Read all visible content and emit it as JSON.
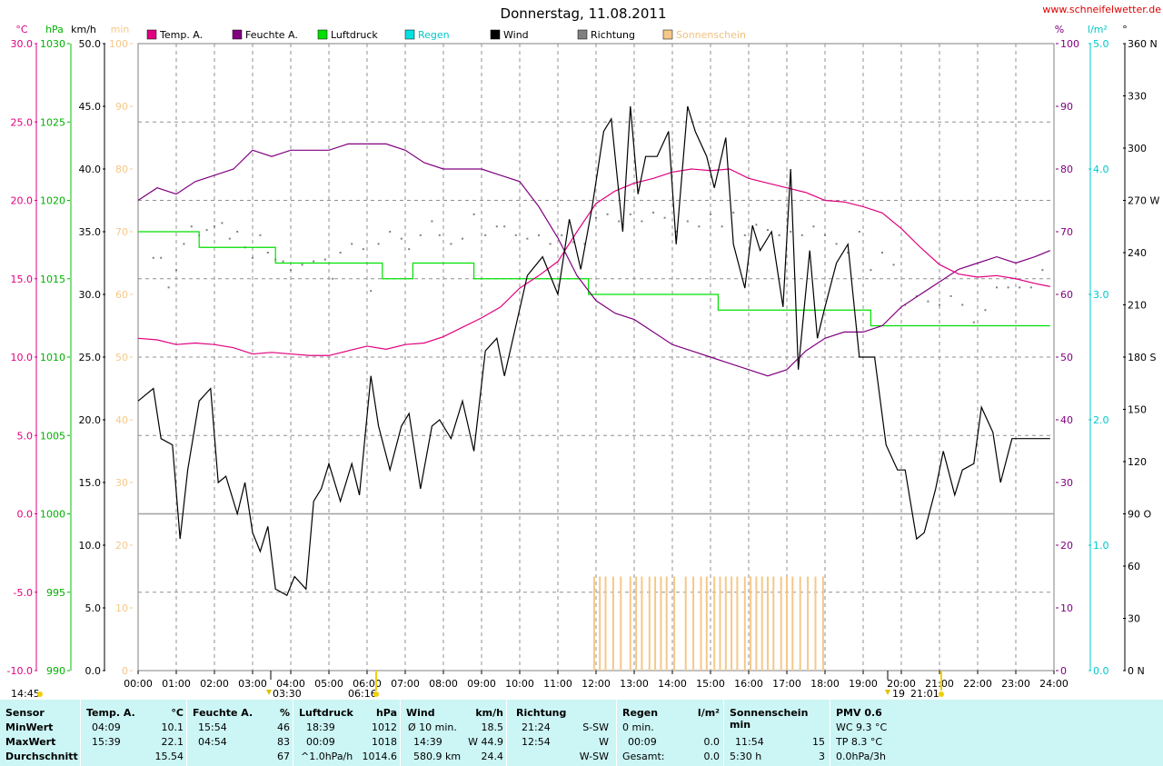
{
  "header": {
    "title": "Donnerstag, 11.08.2011",
    "site": "www.schneifelwetter.de",
    "left_units": [
      "°C",
      "hPa",
      "km/h",
      "min"
    ],
    "right_units": [
      "%",
      "l/m²",
      "°"
    ]
  },
  "legend": [
    {
      "label": "Temp. A.",
      "color": "#e0007f"
    },
    {
      "label": "Feuchte A.",
      "color": "#800080"
    },
    {
      "label": "Luftdruck",
      "color": "#00e000"
    },
    {
      "label": "Regen",
      "color": "#00e0e0"
    },
    {
      "label": "Wind",
      "color": "#000000"
    },
    {
      "label": "Richtung",
      "color": "#808080"
    },
    {
      "label": "Sonnenschein",
      "color": "#f5c889"
    }
  ],
  "chart_data": {
    "type": "line",
    "title": "Donnerstag, 11.08.2011",
    "x_ticks": [
      "00:00",
      "01:00",
      "02:00",
      "03:00",
      "04:00",
      "05:00",
      "06:00",
      "07:00",
      "08:00",
      "09:00",
      "10:00",
      "11:00",
      "12:00",
      "13:00",
      "14:00",
      "15:00",
      "16:00",
      "17:00",
      "18:00",
      "19:00",
      "20:00",
      "21:00",
      "22:00",
      "23:00",
      "24:00"
    ],
    "axes": {
      "temp_c": {
        "range": [
          -10,
          30
        ],
        "ticks": [
          "30.0",
          "25.0",
          "20.0",
          "15.0",
          "10.0",
          "5.0",
          "0.0",
          "-5.0",
          "-10.0"
        ],
        "color": "#e0007f"
      },
      "pressure_hpa": {
        "range": [
          990,
          1030
        ],
        "ticks": [
          "1030",
          "1025",
          "1020",
          "1015",
          "1010",
          "1005",
          "1000",
          "995",
          "990"
        ],
        "color": "#00c000"
      },
      "wind_kmh": {
        "range": [
          0,
          50
        ],
        "ticks": [
          "50.0",
          "45.0",
          "40.0",
          "35.0",
          "30.0",
          "25.0",
          "20.0",
          "15.0",
          "10.0",
          "5.0",
          "0.0"
        ],
        "color": "#000000"
      },
      "sun_min": {
        "range": [
          0,
          100
        ],
        "ticks": [
          "100",
          "90",
          "80",
          "70",
          "60",
          "50",
          "40",
          "30",
          "20",
          "10",
          "0"
        ],
        "color": "#f5c889"
      },
      "humidity_pct": {
        "range": [
          0,
          100
        ],
        "ticks": [
          "100",
          "90",
          "80",
          "70",
          "60",
          "50",
          "40",
          "30",
          "20",
          "10",
          "0"
        ],
        "color": "#800080"
      },
      "rain_lm2": {
        "range": [
          0,
          5
        ],
        "ticks": [
          "5.0",
          "4.0",
          "3.0",
          "2.0",
          "1.0",
          "0.0"
        ],
        "color": "#00e0e0"
      },
      "direction_deg": {
        "range": [
          0,
          360
        ],
        "ticks": [
          "360 N",
          "330",
          "300",
          "270 W",
          "240",
          "210",
          "180 S",
          "150",
          "120",
          "90 O",
          "60",
          "30",
          "0 N"
        ]
      }
    },
    "series": [
      {
        "name": "Temp. A.",
        "axis": "temp_c",
        "x": [
          0,
          0.5,
          1,
          1.5,
          2,
          2.5,
          3,
          3.5,
          4,
          4.5,
          5,
          5.5,
          6,
          6.5,
          7,
          7.5,
          8,
          8.5,
          9,
          9.5,
          10,
          10.5,
          11,
          11.5,
          12,
          12.5,
          13,
          13.5,
          14,
          14.5,
          15,
          15.5,
          16,
          16.5,
          17,
          17.5,
          18,
          18.5,
          19,
          19.5,
          20,
          20.5,
          21,
          21.5,
          22,
          22.5,
          23,
          23.5,
          23.9
        ],
        "y": [
          11.2,
          11.1,
          10.8,
          10.9,
          10.8,
          10.6,
          10.2,
          10.3,
          10.2,
          10.1,
          10.1,
          10.4,
          10.7,
          10.5,
          10.8,
          10.9,
          11.3,
          11.9,
          12.5,
          13.2,
          14.4,
          15.2,
          16.1,
          18.0,
          19.8,
          20.6,
          21.1,
          21.4,
          21.8,
          22.0,
          21.9,
          22.0,
          21.4,
          21.1,
          20.8,
          20.5,
          20.0,
          19.9,
          19.6,
          19.2,
          18.2,
          17.0,
          15.9,
          15.3,
          15.1,
          15.2,
          15.0,
          14.7,
          14.5
        ]
      },
      {
        "name": "Feuchte A.",
        "axis": "humidity_pct",
        "x": [
          0,
          0.5,
          1,
          1.5,
          2,
          2.5,
          3,
          3.5,
          4,
          4.5,
          5,
          5.5,
          6,
          6.5,
          7,
          7.5,
          8,
          8.5,
          9,
          9.5,
          10,
          10.5,
          11,
          11.5,
          12,
          12.5,
          13,
          13.5,
          14,
          14.5,
          15,
          15.5,
          16,
          16.5,
          17,
          17.5,
          18,
          18.5,
          19,
          19.5,
          20,
          20.5,
          21,
          21.5,
          22,
          22.5,
          23,
          23.5,
          23.9
        ],
        "y": [
          75,
          77,
          76,
          78,
          79,
          80,
          83,
          82,
          83,
          83,
          83,
          84,
          84,
          84,
          83,
          81,
          80,
          80,
          80,
          79,
          78,
          74,
          69,
          63,
          59,
          57,
          56,
          54,
          52,
          51,
          50,
          49,
          48,
          47,
          48,
          51,
          53,
          54,
          54,
          55,
          58,
          60,
          62,
          64,
          65,
          66,
          65,
          66,
          67
        ]
      },
      {
        "name": "Luftdruck",
        "axis": "pressure_hpa",
        "x": [
          0,
          0.5,
          1,
          1.4,
          1.6,
          2,
          2.5,
          3,
          3.4,
          3.6,
          4,
          4.5,
          5,
          5.5,
          6,
          6.4,
          6.6,
          7,
          7.2,
          7.5,
          8,
          8.5,
          8.8,
          9,
          9.5,
          10,
          10.5,
          11,
          11.5,
          11.8,
          12,
          12.5,
          13,
          13.5,
          14,
          14.5,
          15,
          15.2,
          15.5,
          16,
          16.5,
          17,
          17.5,
          18,
          18.5,
          19,
          19.2,
          19.5,
          20,
          20.5,
          21,
          21.5,
          22,
          22.5,
          23,
          23.5,
          23.9
        ],
        "y": [
          1018,
          1018,
          1018,
          1018,
          1017,
          1017,
          1017,
          1017,
          1017,
          1016,
          1016,
          1016,
          1016,
          1016,
          1016,
          1015,
          1015,
          1015,
          1016,
          1016,
          1016,
          1016,
          1015,
          1015,
          1015,
          1015,
          1015,
          1015,
          1015,
          1014,
          1014,
          1014,
          1014,
          1014,
          1014,
          1014,
          1014,
          1013,
          1013,
          1013,
          1013,
          1013,
          1013,
          1013,
          1013,
          1013,
          1012,
          1012,
          1012,
          1012,
          1012,
          1012,
          1012,
          1012,
          1012,
          1012,
          1012
        ]
      },
      {
        "name": "Wind",
        "axis": "wind_kmh",
        "x": [
          0,
          0.4,
          0.6,
          0.9,
          1.1,
          1.3,
          1.6,
          1.9,
          2.1,
          2.3,
          2.6,
          2.8,
          3.0,
          3.2,
          3.4,
          3.6,
          3.9,
          4.1,
          4.4,
          4.6,
          4.8,
          5.0,
          5.3,
          5.6,
          5.8,
          6.1,
          6.3,
          6.6,
          6.9,
          7.1,
          7.4,
          7.7,
          7.9,
          8.2,
          8.5,
          8.8,
          9.1,
          9.4,
          9.6,
          9.9,
          10.2,
          10.6,
          11.0,
          11.3,
          11.6,
          11.9,
          12.2,
          12.4,
          12.7,
          12.9,
          13.1,
          13.3,
          13.6,
          13.9,
          14.1,
          14.4,
          14.6,
          14.9,
          15.1,
          15.4,
          15.6,
          15.9,
          16.1,
          16.3,
          16.6,
          16.9,
          17.1,
          17.3,
          17.6,
          17.8,
          18.0,
          18.3,
          18.6,
          18.9,
          19.1,
          19.3,
          19.6,
          19.9,
          20.1,
          20.4,
          20.6,
          20.9,
          21.1,
          21.4,
          21.6,
          21.9,
          22.1,
          22.4,
          22.6,
          22.9,
          23.1,
          23.4,
          23.6,
          23.9
        ],
        "y": [
          21.5,
          22.5,
          18.5,
          18.0,
          10.5,
          16.0,
          21.5,
          22.5,
          15.0,
          15.5,
          12.5,
          15.0,
          11.0,
          9.5,
          11.5,
          6.5,
          6.0,
          7.5,
          6.5,
          13.5,
          14.5,
          16.5,
          13.5,
          16.5,
          14.0,
          23.5,
          19.5,
          16.0,
          19.5,
          20.5,
          14.5,
          19.5,
          20.0,
          18.5,
          21.5,
          17.5,
          25.5,
          26.5,
          23.5,
          27.5,
          31.5,
          33.0,
          30.0,
          36.0,
          32.0,
          37.0,
          43.0,
          44.0,
          35.0,
          45.0,
          38.0,
          41.0,
          41.0,
          43.0,
          34.0,
          45.0,
          43.0,
          41.0,
          38.5,
          42.5,
          34.0,
          30.5,
          35.5,
          33.5,
          35.0,
          29.0,
          40.0,
          24.0,
          33.5,
          26.5,
          29.0,
          32.5,
          34.0,
          25.0,
          25.0,
          25.0,
          18.0,
          16.0,
          16.0,
          10.5,
          11.0,
          14.5,
          17.5,
          14.0,
          16.0,
          16.5,
          21.0,
          19.0,
          15.0,
          18.5,
          18.5,
          18.5,
          18.5,
          18.5
        ]
      },
      {
        "name": "Richtung",
        "axis": "direction_deg",
        "type": "scatter",
        "x": [
          0.4,
          0.6,
          0.8,
          1.0,
          1.2,
          1.4,
          1.6,
          1.8,
          2.0,
          2.2,
          2.4,
          2.6,
          2.8,
          3.0,
          3.2,
          3.4,
          3.6,
          3.8,
          4.0,
          4.3,
          4.6,
          4.9,
          5.1,
          5.3,
          5.6,
          5.9,
          6.1,
          6.3,
          6.6,
          6.9,
          7.1,
          7.4,
          7.7,
          7.9,
          8.2,
          8.5,
          8.8,
          9.1,
          9.4,
          9.6,
          9.9,
          10.2,
          10.5,
          10.8,
          11.1,
          11.4,
          11.7,
          12.0,
          12.3,
          12.6,
          12.9,
          13.2,
          13.5,
          13.8,
          14.1,
          14.4,
          14.7,
          15.0,
          15.3,
          15.6,
          15.9,
          16.2,
          16.5,
          16.8,
          17.1,
          17.4,
          17.7,
          18.0,
          18.3,
          18.6,
          18.9,
          19.2,
          19.5,
          19.8,
          20.1,
          20.4,
          20.7,
          21.0,
          21.3,
          21.6,
          21.9,
          22.2,
          22.5,
          22.8,
          23.1,
          23.4,
          23.7
        ],
        "y": [
          237,
          237,
          220,
          230,
          245,
          255,
          250,
          253,
          255,
          257,
          248,
          252,
          243,
          237,
          250,
          240,
          236,
          235,
          230,
          233,
          235,
          236,
          225,
          240,
          245,
          242,
          218,
          245,
          252,
          248,
          242,
          250,
          258,
          250,
          245,
          248,
          262,
          250,
          255,
          255,
          250,
          248,
          250,
          245,
          250,
          246,
          245,
          260,
          262,
          258,
          262,
          258,
          263,
          260,
          252,
          258,
          255,
          262,
          255,
          263,
          250,
          256,
          253,
          250,
          252,
          250,
          255,
          250,
          245,
          240,
          252,
          230,
          240,
          233,
          210,
          215,
          212,
          210,
          215,
          210,
          200,
          207,
          220,
          220,
          220,
          220,
          230
        ]
      },
      {
        "name": "Sonnenschein",
        "axis": "sun_min",
        "type": "bar",
        "x": [
          11.95,
          12.1,
          12.25,
          12.45,
          12.65,
          12.9,
          13.05,
          13.2,
          13.4,
          13.55,
          13.7,
          13.85,
          14.05,
          14.35,
          14.55,
          14.75,
          14.9,
          15.1,
          15.25,
          15.4,
          15.55,
          15.7,
          15.9,
          16.05,
          16.2,
          16.35,
          16.5,
          16.65,
          16.85,
          17.0,
          17.15,
          17.35,
          17.55,
          17.75,
          17.95
        ],
        "y": [
          15,
          15,
          15,
          15,
          15,
          15,
          15,
          15,
          15,
          15,
          15,
          15,
          15,
          15,
          15,
          15,
          15,
          15,
          15,
          15,
          15,
          15,
          15,
          15,
          15,
          15,
          15,
          15,
          15,
          15,
          15,
          15,
          15,
          15,
          15
        ]
      }
    ],
    "markers": {
      "left_labels": [
        "14:45",
        "03:30",
        "06:16"
      ],
      "right_labels": [
        "19",
        "21:01"
      ]
    },
    "grid": true
  },
  "stats": {
    "sensor": {
      "header": "Sensor",
      "rows": [
        "MinWert",
        "MaxWert",
        "Durchschnitt"
      ]
    },
    "temp": {
      "header": "Temp. A.",
      "unit": "°C",
      "min_time": "04:09",
      "min": "10.1",
      "max_time": "15:39",
      "max": "22.1",
      "avg": "15.54"
    },
    "feuchte": {
      "header": "Feuchte A.",
      "unit": "%",
      "min_time": "15:54",
      "min": "46",
      "max_time": "04:54",
      "max": "83",
      "avg": "67"
    },
    "luftdruck": {
      "header": "Luftdruck",
      "unit": "hPa",
      "min_time": "18:39",
      "min": "1012",
      "max_time": "00:09",
      "max": "1018",
      "trend": "^1.0hPa/h",
      "avg": "1014.6"
    },
    "wind": {
      "header": "Wind",
      "unit": "km/h",
      "r1_label": "Ø 10 min.",
      "r1_val": "18.5",
      "r2_time": "14:39",
      "r2_val": "W 44.9",
      "r3_label": "580.9 km",
      "r3_val": "24.4"
    },
    "richtung": {
      "header": "Richtung",
      "r1_time": "21:24",
      "r1_val": "S-SW",
      "r2_time": "12:54",
      "r2_val": "W",
      "r3_val": "W-SW"
    },
    "regen": {
      "header": "Regen",
      "unit": "l/m²",
      "r1_label": "0 min.",
      "r2_time": "00:09",
      "r2_val": "0.0",
      "r3_label": "Gesamt:",
      "r3_val": "0.0"
    },
    "sonne": {
      "header": "Sonnenschein min",
      "r2_time": "11:54",
      "r2_val": "15",
      "r3_label": "5:30 h",
      "r3_val": "3"
    },
    "pmv": {
      "header": "PMV 0.6",
      "r1": "WC 9.3 °C",
      "r2": "TP 8.3 °C",
      "r3": "0.0hPa/3h"
    }
  }
}
